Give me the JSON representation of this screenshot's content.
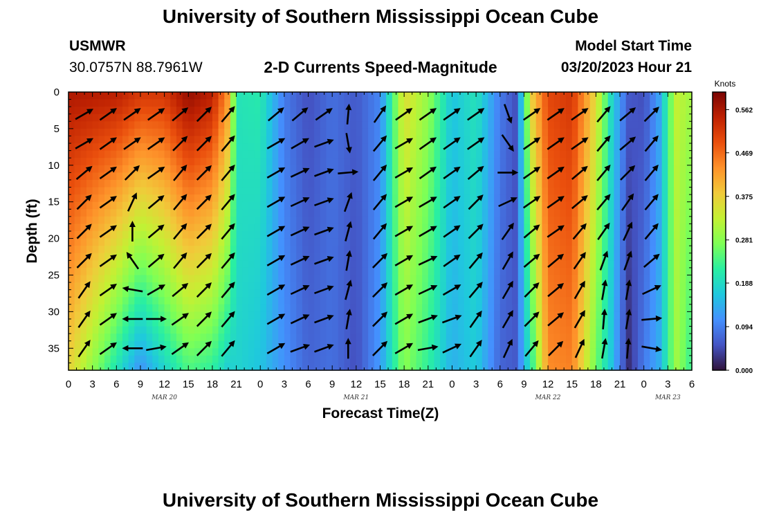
{
  "header": {
    "title": "University of Southern Mississippi Ocean Cube",
    "station_id": "USMWR",
    "station_coords": "30.0757N  88.7961W",
    "subtitle": "2-D Currents Speed-Magnitude",
    "model_start_label": "Model Start Time",
    "model_start_value": "03/20/2023 Hour 21"
  },
  "footer": {
    "repeated_title": "University of Southern Mississippi Ocean Cube"
  },
  "chart_data": {
    "type": "heatmap",
    "title": "2-D Currents Speed-Magnitude",
    "xlabel": "Forecast Time(Z)",
    "ylabel": "Depth (ft)",
    "x_range_hours": [
      0,
      78
    ],
    "x_tick_labels": [
      "0",
      "3",
      "6",
      "9",
      "12",
      "15",
      "18",
      "21",
      "0",
      "3",
      "6",
      "9",
      "12",
      "15",
      "18",
      "21",
      "0",
      "3",
      "6",
      "9",
      "12",
      "15",
      "18",
      "21",
      "0",
      "3",
      "6"
    ],
    "date_labels": [
      {
        "hour": 12,
        "text": "MAR 20"
      },
      {
        "hour": 36,
        "text": "MAR 21"
      },
      {
        "hour": 60,
        "text": "MAR 22"
      },
      {
        "hour": 75,
        "text": "MAR 23"
      }
    ],
    "y_range_ft": [
      0,
      38
    ],
    "y_ticks": [
      0,
      5,
      10,
      15,
      20,
      25,
      30,
      35
    ],
    "colorbar": {
      "label": "Knots",
      "min": 0,
      "max": 0.6,
      "tick_values": [
        0.0,
        0.094,
        0.188,
        0.281,
        0.375,
        0.469,
        0.562
      ],
      "tick_labels": [
        "0.000",
        "0.094",
        "0.188",
        "0.281",
        "0.375",
        "0.469",
        "0.562"
      ],
      "colors": [
        "#30123b",
        "#4454c4",
        "#4490fe",
        "#1fc8de",
        "#29efa2",
        "#7eff55",
        "#c3f133",
        "#f1ca3a",
        "#fe922a",
        "#ea4f0d",
        "#be2102",
        "#7a0403"
      ]
    },
    "speed_keyframes": [
      {
        "hour": 0,
        "surface": 0.56,
        "bottom": 0.37
      },
      {
        "hour": 6,
        "surface": 0.55,
        "bottom": 0.2
      },
      {
        "hour": 9,
        "surface": 0.52,
        "bottom": 0.11
      },
      {
        "hour": 12,
        "surface": 0.52,
        "bottom": 0.18
      },
      {
        "hour": 15,
        "surface": 0.58,
        "bottom": 0.24
      },
      {
        "hour": 18,
        "surface": 0.55,
        "bottom": 0.22
      },
      {
        "hour": 20,
        "surface": 0.43,
        "bottom": 0.17
      },
      {
        "hour": 21,
        "surface": 0.2,
        "bottom": 0.18
      },
      {
        "hour": 24,
        "surface": 0.21,
        "bottom": 0.16
      },
      {
        "hour": 27,
        "surface": 0.09,
        "bottom": 0.11
      },
      {
        "hour": 30,
        "surface": 0.05,
        "bottom": 0.07
      },
      {
        "hour": 33,
        "surface": 0.08,
        "bottom": 0.08
      },
      {
        "hour": 36,
        "surface": 0.06,
        "bottom": 0.05
      },
      {
        "hour": 39,
        "surface": 0.1,
        "bottom": 0.12
      },
      {
        "hour": 42,
        "surface": 0.36,
        "bottom": 0.28
      },
      {
        "hour": 45,
        "surface": 0.29,
        "bottom": 0.22
      },
      {
        "hour": 48,
        "surface": 0.16,
        "bottom": 0.14
      },
      {
        "hour": 51,
        "surface": 0.2,
        "bottom": 0.17
      },
      {
        "hour": 54,
        "surface": 0.09,
        "bottom": 0.07
      },
      {
        "hour": 56,
        "surface": 0.05,
        "bottom": 0.06
      },
      {
        "hour": 58,
        "surface": 0.38,
        "bottom": 0.22
      },
      {
        "hour": 60,
        "surface": 0.5,
        "bottom": 0.44
      },
      {
        "hour": 63,
        "surface": 0.52,
        "bottom": 0.45
      },
      {
        "hour": 66,
        "surface": 0.36,
        "bottom": 0.26
      },
      {
        "hour": 68,
        "surface": 0.18,
        "bottom": 0.16
      },
      {
        "hour": 70,
        "surface": 0.06,
        "bottom": 0.02
      },
      {
        "hour": 72,
        "surface": 0.05,
        "bottom": 0.09
      },
      {
        "hour": 74,
        "surface": 0.13,
        "bottom": 0.14
      },
      {
        "hour": 76,
        "surface": 0.33,
        "bottom": 0.3
      },
      {
        "hour": 78,
        "surface": 0.3,
        "bottom": 0.22
      }
    ],
    "vector_hours": [
      2,
      5,
      8,
      11,
      14,
      17,
      20,
      26,
      29,
      32,
      35,
      39,
      42,
      45,
      48,
      51,
      55,
      58,
      61,
      64,
      67,
      70,
      73
    ],
    "vector_depths_ft": [
      3,
      7,
      11,
      15,
      19,
      23,
      27,
      31,
      35
    ],
    "vector_directions_deg": {
      "2": [
        120,
        120,
        130,
        135,
        135,
        135,
        145,
        145,
        145
      ],
      "5": [
        125,
        125,
        125,
        125,
        125,
        125,
        125,
        125,
        125
      ],
      "8": [
        125,
        125,
        135,
        155,
        180,
        215,
        260,
        270,
        270
      ],
      "11": [
        125,
        125,
        125,
        130,
        130,
        130,
        120,
        90,
        100
      ],
      "14": [
        130,
        135,
        140,
        140,
        140,
        140,
        130,
        125,
        125
      ],
      "17": [
        135,
        135,
        135,
        135,
        135,
        135,
        135,
        135,
        135
      ],
      "20": [
        140,
        140,
        140,
        140,
        140,
        140,
        140,
        140,
        140
      ],
      "26": [
        130,
        120,
        120,
        120,
        120,
        120,
        120,
        120,
        120
      ],
      "29": [
        130,
        120,
        115,
        115,
        115,
        115,
        115,
        115,
        110
      ],
      "32": [
        125,
        110,
        110,
        110,
        110,
        110,
        110,
        110,
        110
      ],
      "35": [
        175,
        10,
        95,
        160,
        165,
        170,
        165,
        170,
        180
      ],
      "39": [
        145,
        140,
        140,
        140,
        140,
        135,
        135,
        135,
        135
      ],
      "42": [
        125,
        120,
        120,
        120,
        120,
        120,
        120,
        120,
        120
      ],
      "45": [
        125,
        125,
        125,
        120,
        120,
        115,
        115,
        110,
        100
      ],
      "48": [
        125,
        125,
        125,
        125,
        125,
        125,
        120,
        110,
        115
      ],
      "51": [
        125,
        125,
        130,
        135,
        135,
        140,
        140,
        145,
        145
      ],
      "55": [
        20,
        35,
        90,
        115,
        145,
        150,
        150,
        150,
        155
      ],
      "58": [
        125,
        125,
        125,
        125,
        130,
        130,
        135,
        135,
        140
      ],
      "61": [
        125,
        125,
        125,
        125,
        125,
        130,
        130,
        130,
        135
      ],
      "64": [
        125,
        125,
        130,
        130,
        140,
        145,
        150,
        150,
        155
      ],
      "67": [
        140,
        140,
        140,
        140,
        145,
        160,
        170,
        175,
        170
      ],
      "70": [
        130,
        130,
        135,
        145,
        155,
        160,
        170,
        170,
        175
      ],
      "73": [
        135,
        140,
        140,
        140,
        140,
        130,
        115,
        95,
        80
      ]
    }
  }
}
